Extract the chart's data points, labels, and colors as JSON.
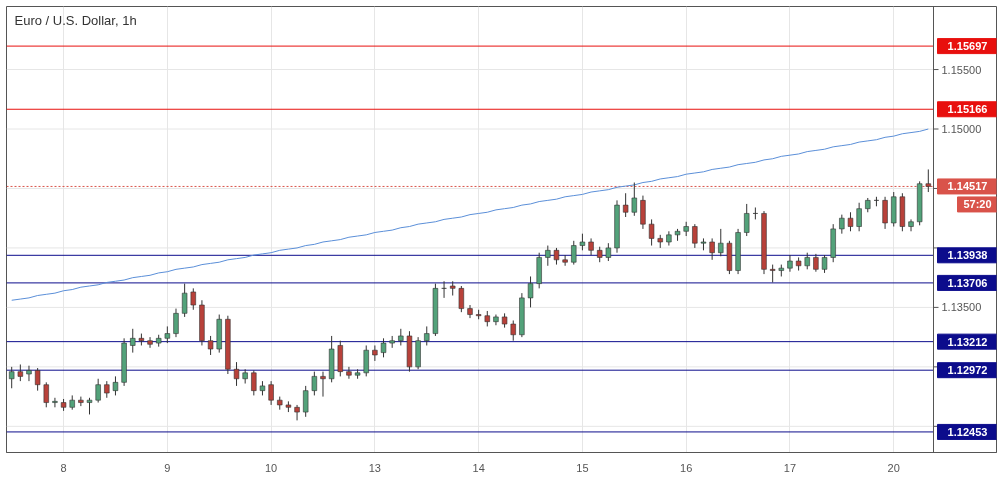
{
  "chart_data": {
    "type": "candlestick",
    "title": "Euro / U.S. Dollar, 1h",
    "categories": [
      null,
      null,
      null,
      null,
      null,
      null,
      "8",
      null,
      null,
      null,
      null,
      null,
      null,
      null,
      null,
      null,
      null,
      null,
      "9",
      null,
      null,
      null,
      null,
      null,
      null,
      null,
      null,
      null,
      null,
      null,
      "10",
      null,
      null,
      null,
      null,
      null,
      null,
      null,
      null,
      null,
      null,
      null,
      "13",
      null,
      null,
      null,
      null,
      null,
      null,
      null,
      null,
      null,
      null,
      null,
      "14",
      null,
      null,
      null,
      null,
      null,
      null,
      null,
      null,
      null,
      null,
      null,
      "15",
      null,
      null,
      null,
      null,
      null,
      null,
      null,
      null,
      null,
      null,
      null,
      "16",
      null,
      null,
      null,
      null,
      null,
      null,
      null,
      null,
      null,
      null,
      null,
      "17",
      null,
      null,
      null,
      null,
      null,
      null,
      null,
      null,
      null,
      null,
      null,
      "20",
      null,
      null,
      null,
      null
    ],
    "ohlc": [
      [
        1.129,
        1.13,
        1.1282,
        1.1296
      ],
      [
        1.1296,
        1.1302,
        1.1288,
        1.1292
      ],
      [
        1.1294,
        1.1301,
        1.1288,
        1.1297
      ],
      [
        1.1297,
        1.1299,
        1.128,
        1.1285
      ],
      [
        1.1285,
        1.1287,
        1.1266,
        1.127
      ],
      [
        1.127,
        1.1274,
        1.1266,
        1.1271
      ],
      [
        1.127,
        1.1273,
        1.1263,
        1.1266
      ],
      [
        1.1266,
        1.1276,
        1.1264,
        1.1272
      ],
      [
        1.1272,
        1.1275,
        1.1267,
        1.127
      ],
      [
        1.127,
        1.1274,
        1.126,
        1.1272
      ],
      [
        1.1272,
        1.129,
        1.127,
        1.1285
      ],
      [
        1.1285,
        1.1288,
        1.1274,
        1.1278
      ],
      [
        1.128,
        1.1292,
        1.1276,
        1.1287
      ],
      [
        1.1287,
        1.1324,
        1.1284,
        1.132
      ],
      [
        1.1318,
        1.1332,
        1.1312,
        1.1324
      ],
      [
        1.1324,
        1.1328,
        1.1318,
        1.1322
      ],
      [
        1.1322,
        1.1325,
        1.1316,
        1.1319
      ],
      [
        1.132,
        1.1327,
        1.1317,
        1.1324
      ],
      [
        1.1324,
        1.1334,
        1.132,
        1.1328
      ],
      [
        1.1328,
        1.1349,
        1.1325,
        1.1345
      ],
      [
        1.1345,
        1.137,
        1.1342,
        1.1362
      ],
      [
        1.1363,
        1.1366,
        1.1348,
        1.1352
      ],
      [
        1.1352,
        1.1356,
        1.1318,
        1.1322
      ],
      [
        1.1322,
        1.1326,
        1.131,
        1.1315
      ],
      [
        1.1315,
        1.1344,
        1.1312,
        1.134
      ],
      [
        1.134,
        1.1343,
        1.1294,
        1.1298
      ],
      [
        1.1298,
        1.1304,
        1.1284,
        1.129
      ],
      [
        1.129,
        1.1298,
        1.1286,
        1.1295
      ],
      [
        1.1295,
        1.1297,
        1.1276,
        1.128
      ],
      [
        1.128,
        1.1288,
        1.1276,
        1.1284
      ],
      [
        1.1285,
        1.1288,
        1.1268,
        1.1272
      ],
      [
        1.1272,
        1.1275,
        1.1264,
        1.1268
      ],
      [
        1.1268,
        1.1271,
        1.1262,
        1.1266
      ],
      [
        1.1266,
        1.1268,
        1.1255,
        1.1262
      ],
      [
        1.1262,
        1.1284,
        1.1258,
        1.128
      ],
      [
        1.128,
        1.1296,
        1.1276,
        1.1292
      ],
      [
        1.1292,
        1.1296,
        1.1275,
        1.129
      ],
      [
        1.129,
        1.1326,
        1.1287,
        1.1315
      ],
      [
        1.1318,
        1.1322,
        1.1292,
        1.1296
      ],
      [
        1.1296,
        1.13,
        1.129,
        1.1293
      ],
      [
        1.1293,
        1.1298,
        1.129,
        1.1295
      ],
      [
        1.1295,
        1.1318,
        1.1292,
        1.1314
      ],
      [
        1.1314,
        1.1318,
        1.1305,
        1.131
      ],
      [
        1.1312,
        1.1324,
        1.1308,
        1.132
      ],
      [
        1.132,
        1.1326,
        1.1316,
        1.1322
      ],
      [
        1.1322,
        1.1332,
        1.1318,
        1.1326
      ],
      [
        1.1326,
        1.133,
        1.1296,
        1.13
      ],
      [
        1.13,
        1.1325,
        1.1298,
        1.1322
      ],
      [
        1.1322,
        1.1334,
        1.1318,
        1.1328
      ],
      [
        1.1328,
        1.137,
        1.1326,
        1.1366
      ],
      [
        1.1366,
        1.1372,
        1.1358,
        1.1366
      ],
      [
        1.1368,
        1.1372,
        1.136,
        1.1366
      ],
      [
        1.1366,
        1.1368,
        1.1346,
        1.1349
      ],
      [
        1.1349,
        1.1352,
        1.1341,
        1.1344
      ],
      [
        1.1344,
        1.1348,
        1.134,
        1.1343
      ],
      [
        1.1343,
        1.1347,
        1.1334,
        1.1338
      ],
      [
        1.1338,
        1.1344,
        1.1335,
        1.1342
      ],
      [
        1.1342,
        1.1345,
        1.1333,
        1.1336
      ],
      [
        1.1336,
        1.1339,
        1.1322,
        1.1327
      ],
      [
        1.1327,
        1.1362,
        1.1325,
        1.1358
      ],
      [
        1.1358,
        1.1376,
        1.135,
        1.137
      ],
      [
        1.137,
        1.1396,
        1.1366,
        1.1392
      ],
      [
        1.1392,
        1.1402,
        1.1385,
        1.1398
      ],
      [
        1.1398,
        1.14,
        1.1386,
        1.139
      ],
      [
        1.139,
        1.1394,
        1.1385,
        1.1388
      ],
      [
        1.1388,
        1.1406,
        1.1386,
        1.1402
      ],
      [
        1.1402,
        1.1412,
        1.1398,
        1.1405
      ],
      [
        1.1405,
        1.1408,
        1.1394,
        1.1398
      ],
      [
        1.1398,
        1.1401,
        1.1388,
        1.1392
      ],
      [
        1.1392,
        1.1404,
        1.1389,
        1.14
      ],
      [
        1.14,
        1.144,
        1.1396,
        1.1436
      ],
      [
        1.1436,
        1.1446,
        1.1426,
        1.143
      ],
      [
        1.143,
        1.1455,
        1.1427,
        1.1442
      ],
      [
        1.144,
        1.1444,
        1.1416,
        1.142
      ],
      [
        1.142,
        1.1424,
        1.1402,
        1.1408
      ],
      [
        1.1408,
        1.1411,
        1.14,
        1.1405
      ],
      [
        1.1405,
        1.1414,
        1.1402,
        1.1411
      ],
      [
        1.1411,
        1.1416,
        1.1406,
        1.1414
      ],
      [
        1.1414,
        1.1422,
        1.141,
        1.1418
      ],
      [
        1.1418,
        1.142,
        1.14,
        1.1404
      ],
      [
        1.1404,
        1.1408,
        1.1398,
        1.1405
      ],
      [
        1.1405,
        1.1408,
        1.139,
        1.1396
      ],
      [
        1.1396,
        1.1416,
        1.1393,
        1.1404
      ],
      [
        1.1404,
        1.1406,
        1.1378,
        1.1381
      ],
      [
        1.1381,
        1.1416,
        1.1378,
        1.1413
      ],
      [
        1.1413,
        1.1437,
        1.141,
        1.1429
      ],
      [
        1.1429,
        1.1434,
        1.1424,
        1.1429
      ],
      [
        1.1429,
        1.1431,
        1.1378,
        1.1382
      ],
      [
        1.1382,
        1.1386,
        1.1371,
        1.1381
      ],
      [
        1.1381,
        1.1386,
        1.1376,
        1.1383
      ],
      [
        1.1383,
        1.1394,
        1.138,
        1.1389
      ],
      [
        1.1389,
        1.1392,
        1.1381,
        1.1385
      ],
      [
        1.1385,
        1.1396,
        1.1382,
        1.1392
      ],
      [
        1.1392,
        1.1395,
        1.138,
        1.1382
      ],
      [
        1.1382,
        1.1394,
        1.1379,
        1.1392
      ],
      [
        1.1392,
        1.142,
        1.1388,
        1.1416
      ],
      [
        1.1416,
        1.1428,
        1.1412,
        1.1425
      ],
      [
        1.1425,
        1.143,
        1.1414,
        1.1418
      ],
      [
        1.1418,
        1.1438,
        1.1414,
        1.1433
      ],
      [
        1.1433,
        1.1442,
        1.143,
        1.144
      ],
      [
        1.144,
        1.1443,
        1.1435,
        1.144
      ],
      [
        1.144,
        1.1443,
        1.1416,
        1.1421
      ],
      [
        1.1421,
        1.1447,
        1.1418,
        1.1443
      ],
      [
        1.1443,
        1.1446,
        1.1414,
        1.1418
      ],
      [
        1.1418,
        1.1424,
        1.1414,
        1.1422
      ],
      [
        1.1422,
        1.1456,
        1.1419,
        1.1454
      ],
      [
        1.1454,
        1.1466,
        1.1447,
        1.14517
      ]
    ],
    "series": [
      {
        "type": "line",
        "color": "#5b8fd8",
        "values": [
          1.1356,
          1.1357,
          1.1358,
          1.136,
          1.1361,
          1.1362,
          1.1364,
          1.1365,
          1.1367,
          1.1368,
          1.1369,
          1.1371,
          1.1372,
          1.1373,
          1.1375,
          1.1376,
          1.1377,
          1.1379,
          1.138,
          1.1382,
          1.1383,
          1.1384,
          1.1386,
          1.1387,
          1.1388,
          1.139,
          1.1391,
          1.1392,
          1.1394,
          1.1395,
          1.1396,
          1.1398,
          1.1399,
          1.14,
          1.1402,
          1.1403,
          1.1405,
          1.1406,
          1.1407,
          1.1409,
          1.141,
          1.1411,
          1.1413,
          1.1414,
          1.1415,
          1.1417,
          1.1418,
          1.142,
          1.1421,
          1.1422,
          1.1424,
          1.1425,
          1.1426,
          1.1428,
          1.1429,
          1.143,
          1.1432,
          1.1433,
          1.1434,
          1.1436,
          1.1437,
          1.1439,
          1.144,
          1.1441,
          1.1443,
          1.1444,
          1.1445,
          1.1447,
          1.1448,
          1.1449,
          1.1451,
          1.1452,
          1.1453,
          1.1455,
          1.1456,
          1.1458,
          1.1459,
          1.146,
          1.1462,
          1.1463,
          1.1464,
          1.1466,
          1.1467,
          1.1468,
          1.147,
          1.1471,
          1.1472,
          1.1474,
          1.1475,
          1.1477,
          1.1478,
          1.1479,
          1.1481,
          1.1482,
          1.1483,
          1.1485,
          1.1486,
          1.1487,
          1.1489,
          1.149,
          1.1491,
          1.1493,
          1.1494,
          1.1496,
          1.1497,
          1.1498,
          1.15
        ]
      }
    ],
    "ylim": [
      1.1228,
      1.1603
    ],
    "yticks": [
      {
        "value": 1.125,
        "label": null
      },
      {
        "value": 1.13,
        "label": null
      },
      {
        "value": 1.135,
        "label": "1.13500"
      },
      {
        "value": 1.14,
        "label": null
      },
      {
        "value": 1.145,
        "label": null
      },
      {
        "value": 1.15,
        "label": "1.15000"
      },
      {
        "value": 1.155,
        "label": "1.15500"
      }
    ],
    "grid": true,
    "ref_lines": [
      {
        "axis": "y",
        "value": 1.15697,
        "label": "1.15697",
        "color": "#e8100e"
      },
      {
        "axis": "y",
        "value": 1.15166,
        "label": "1.15166",
        "color": "#e8100e"
      },
      {
        "axis": "y",
        "value": 1.14517,
        "label": "1.14517",
        "color": "#d9534a",
        "line_style": "dotted"
      },
      {
        "axis": "y",
        "value": 1.13938,
        "label": "1.13938",
        "color": "#0c0c8c"
      },
      {
        "axis": "y",
        "value": 1.13706,
        "label": "1.13706",
        "color": "#0c0c8c"
      },
      {
        "axis": "y",
        "value": 1.13212,
        "label": "1.13212",
        "color": "#0c0c8c"
      },
      {
        "axis": "y",
        "value": 1.12972,
        "label": "1.12972",
        "color": "#0c0c8c"
      },
      {
        "axis": "y",
        "value": 1.12453,
        "label": "1.12453",
        "color": "#0c0c8c"
      }
    ],
    "annotations": [
      "57:20"
    ]
  }
}
